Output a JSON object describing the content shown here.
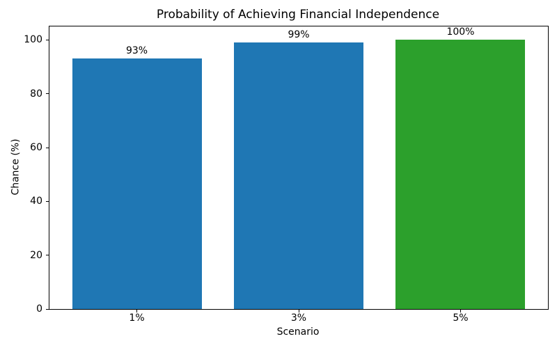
{
  "chart_data": {
    "type": "bar",
    "title": "Probability of Achieving Financial Independence",
    "xlabel": "Scenario",
    "ylabel": "Chance (%)",
    "categories": [
      "1%",
      "3%",
      "5%"
    ],
    "values": [
      93,
      99,
      100
    ],
    "bar_labels": [
      "93%",
      "99%",
      "100%"
    ],
    "bar_colors": [
      "#1f77b4",
      "#1f77b4",
      "#2ca02c"
    ],
    "yticks": [
      0,
      20,
      40,
      60,
      80,
      100
    ],
    "ylim": [
      0,
      105
    ],
    "grid": false,
    "legend_position": "none"
  },
  "colors": {
    "background": "#ffffff",
    "spine": "#000000",
    "text": "#000000",
    "blue_bar": "#1f77b4",
    "green_bar": "#2ca02c"
  }
}
